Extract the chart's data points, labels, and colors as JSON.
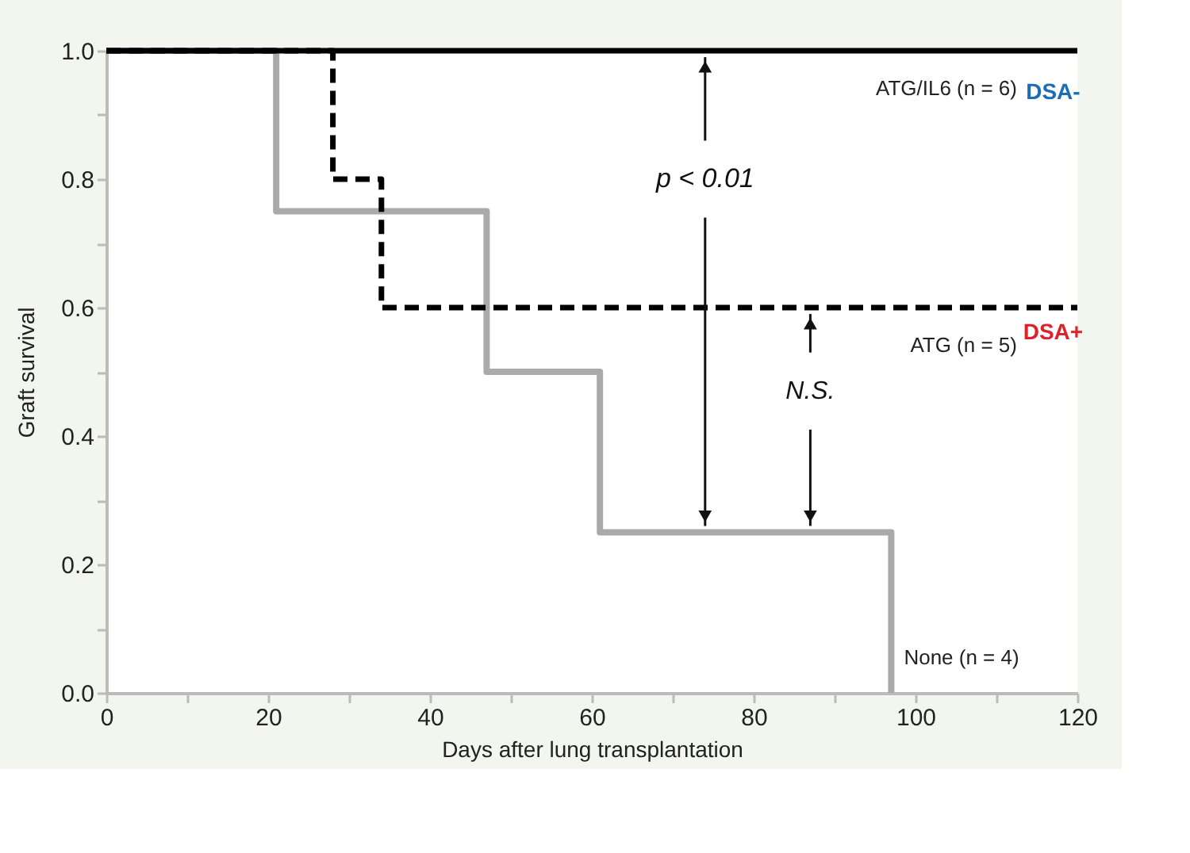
{
  "chart_data": {
    "type": "step",
    "xlabel": "Days after lung transplantation",
    "ylabel": "Graft survival",
    "xlim": [
      0,
      120
    ],
    "ylim": [
      0,
      1.0
    ],
    "xticks": [
      0,
      {
        "value": 10,
        "label": null
      },
      20,
      {
        "value": 30,
        "label": null
      },
      40,
      {
        "value": 50,
        "label": null
      },
      60,
      {
        "value": 70,
        "label": null
      },
      80,
      {
        "value": 90,
        "label": null
      },
      100,
      {
        "value": 110,
        "label": null
      },
      120
    ],
    "yticks": [
      {
        "value": 0,
        "label": "0.0"
      },
      {
        "value": 0.1,
        "label": null
      },
      {
        "value": 0.2,
        "label": "0.2"
      },
      {
        "value": 0.3,
        "label": null
      },
      {
        "value": 0.4,
        "label": "0.4"
      },
      {
        "value": 0.5,
        "label": null
      },
      {
        "value": 0.6,
        "label": "0.6"
      },
      {
        "value": 0.7,
        "label": null
      },
      {
        "value": 0.8,
        "label": "0.8"
      },
      {
        "value": 0.9,
        "label": null
      },
      {
        "value": 1.0,
        "label": "1.0"
      }
    ],
    "grid": false,
    "legend": false,
    "series": [
      {
        "name": "ATG/IL6 (n = 6)",
        "color": "#000000",
        "line_style": "solid",
        "x": [
          0,
          120
        ],
        "values": [
          1.0,
          1.0
        ]
      },
      {
        "name": "ATG (n = 5)",
        "color": "#000000",
        "line_style": "dashed",
        "x": [
          0,
          28,
          34,
          120
        ],
        "values": [
          1.0,
          0.8,
          0.6,
          0.6
        ]
      },
      {
        "name": "None (n = 4)",
        "color": "#aaaaaa",
        "line_style": "solid",
        "x": [
          0,
          21,
          47,
          61,
          97
        ],
        "values": [
          1.0,
          0.75,
          0.5,
          0.25,
          0.0
        ]
      }
    ],
    "annotations": [
      {
        "text": "p < 0.01",
        "x": 74,
        "y": 0.25
      },
      {
        "text": "N.S.",
        "x": 87,
        "y": 0.25
      },
      "DSA-",
      "DSA+"
    ]
  }
}
